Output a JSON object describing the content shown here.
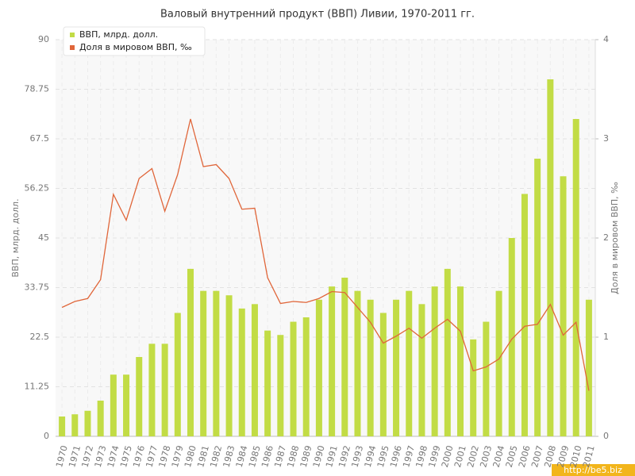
{
  "chart_data": {
    "type": "bar",
    "title": "Валовый внутренний продукт (ВВП) Ливии, 1970-2011 гг.",
    "y_label": "ВВП, млрд. долл.",
    "y2_label": "Доля в мировом ВВП, ‰",
    "watermark": "http://be5.biz",
    "legend": "top-left",
    "grid": true,
    "categories": [
      "1970",
      "1971",
      "1972",
      "1973",
      "1974",
      "1975",
      "1976",
      "1977",
      "1978",
      "1979",
      "1980",
      "1981",
      "1982",
      "1983",
      "1984",
      "1985",
      "1986",
      "1987",
      "1988",
      "1989",
      "1990",
      "1991",
      "1992",
      "1993",
      "1994",
      "1995",
      "1996",
      "1997",
      "1998",
      "1999",
      "2000",
      "2001",
      "2002",
      "2003",
      "2004",
      "2005",
      "2006",
      "2007",
      "2008",
      "2009",
      "2010",
      "2011"
    ],
    "ylim": [
      0,
      90
    ],
    "yticks": [
      0,
      11.25,
      22.5,
      33.75,
      45,
      56.25,
      67.5,
      78.75,
      90
    ],
    "y2lim": [
      0,
      4
    ],
    "y2ticks": [
      0,
      1,
      2,
      3,
      4
    ],
    "series": [
      {
        "name": "ВВП, млрд. долл.",
        "type": "bar",
        "color": "#c2dc45",
        "values": [
          4.5,
          5,
          5.8,
          8.1,
          14,
          14,
          18,
          21,
          21,
          28,
          38,
          33,
          33,
          32,
          29,
          30,
          24,
          23,
          26,
          27,
          31,
          34,
          36,
          33,
          31,
          28,
          31,
          33,
          30,
          34,
          38,
          34,
          22,
          26,
          33,
          45,
          55,
          63,
          81,
          59,
          72,
          31
        ]
      },
      {
        "name": "Доля в мировом ВВП, ‰",
        "type": "line",
        "axis": "y2",
        "color": "#e0663a",
        "values": [
          1.3,
          1.36,
          1.39,
          1.58,
          2.44,
          2.18,
          2.6,
          2.7,
          2.27,
          2.64,
          3.2,
          2.72,
          2.74,
          2.6,
          2.29,
          2.3,
          1.6,
          1.34,
          1.36,
          1.35,
          1.39,
          1.46,
          1.45,
          1.3,
          1.15,
          0.94,
          1.01,
          1.09,
          0.99,
          1.09,
          1.18,
          1.06,
          0.66,
          0.7,
          0.78,
          0.98,
          1.11,
          1.13,
          1.33,
          1.02,
          1.15,
          0.46
        ]
      }
    ]
  }
}
